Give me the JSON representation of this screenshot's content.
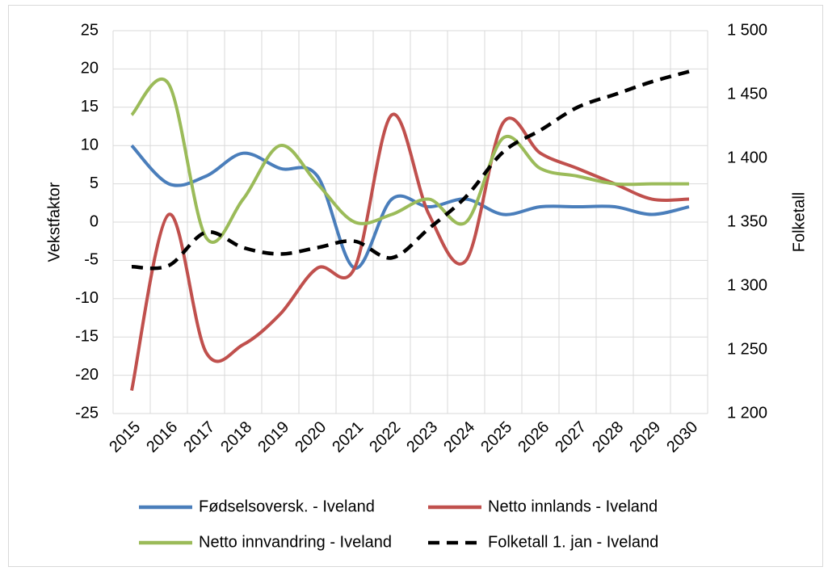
{
  "chart_data": {
    "type": "line",
    "categories": [
      "2015",
      "2016",
      "2017",
      "2018",
      "2019",
      "2020",
      "2021",
      "2022",
      "2023",
      "2024",
      "2025",
      "2026",
      "2027",
      "2028",
      "2029",
      "2030"
    ],
    "y_label": "Vekstfaktor",
    "y2_label": "Folketall",
    "ylim": [
      -25,
      25
    ],
    "yticks": [
      -25,
      -20,
      -15,
      -10,
      -5,
      0,
      5,
      10,
      15,
      20,
      25
    ],
    "y2lim": [
      1200,
      1500
    ],
    "y2ticks": [
      {
        "value": 1200,
        "label": "1 200"
      },
      {
        "value": 1250,
        "label": "1 250"
      },
      {
        "value": 1300,
        "label": "1 300"
      },
      {
        "value": 1350,
        "label": "1 350"
      },
      {
        "value": 1400,
        "label": "1 400"
      },
      {
        "value": 1450,
        "label": "1 450"
      },
      {
        "value": 1500,
        "label": "1 500"
      }
    ],
    "grid": true,
    "smooth": true,
    "legend": "bottom",
    "series": [
      {
        "name": "Fødselsoversk. - Iveland",
        "color": "#4a7ebb",
        "values": [
          10,
          5,
          6,
          9,
          7,
          6,
          -6,
          3,
          2,
          3,
          1,
          2,
          2,
          2,
          1,
          2
        ]
      },
      {
        "name": "Netto innlands - Iveland",
        "color": "#c0504d",
        "values": [
          -22,
          1,
          -17,
          -16,
          -12,
          -6,
          -6,
          14,
          1,
          -5,
          13,
          9,
          7,
          5,
          3,
          3
        ]
      },
      {
        "name": "Netto innvandring - Iveland",
        "color": "#9bbb59",
        "values": [
          14,
          18,
          -2,
          3,
          10,
          5,
          0,
          1,
          3,
          0,
          11,
          7,
          6,
          5,
          5,
          5
        ]
      },
      {
        "name": "Folketall 1. jan - Iveland",
        "color": "#000000",
        "axis": "y2",
        "dash": true,
        "values": [
          1315,
          1316,
          1342,
          1330,
          1325,
          1330,
          1335,
          1322,
          1345,
          1370,
          1405,
          1422,
          1440,
          1450,
          1460,
          1468
        ]
      }
    ]
  }
}
